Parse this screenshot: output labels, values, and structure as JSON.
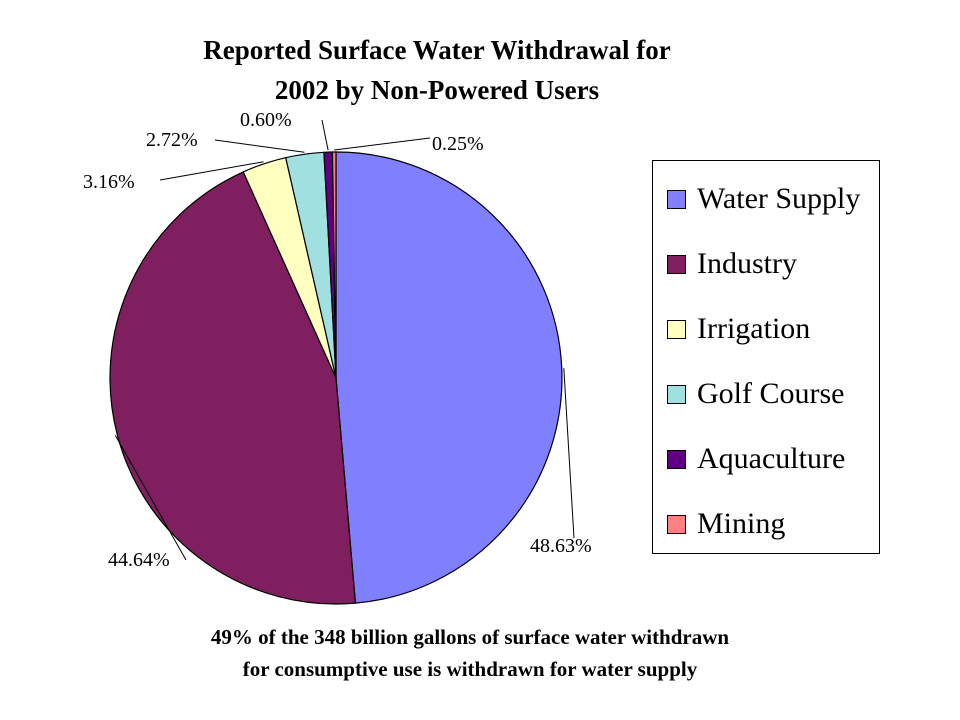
{
  "chart_data": {
    "type": "pie",
    "title": [
      "Reported Surface Water Withdrawal for",
      "2002 by Non-Powered Users"
    ],
    "categories": [
      "Water Supply",
      "Industry",
      "Irrigation",
      "Golf Course",
      "Aquaculture",
      "Mining"
    ],
    "values": [
      48.63,
      44.64,
      3.16,
      2.72,
      0.6,
      0.25
    ],
    "data_labels": [
      "48.63%",
      "44.64%",
      "3.16%",
      "2.72%",
      "0.60%",
      "0.25%"
    ],
    "colors": [
      "#8080ff",
      "#7f1f5f",
      "#ffffc0",
      "#a0e0e0",
      "#600080",
      "#ff8080"
    ],
    "legend_placement": "right",
    "caption": [
      "49% of the 348 billion gallons of surface water withdrawn",
      "for consumptive use is withdrawn for water supply"
    ]
  }
}
